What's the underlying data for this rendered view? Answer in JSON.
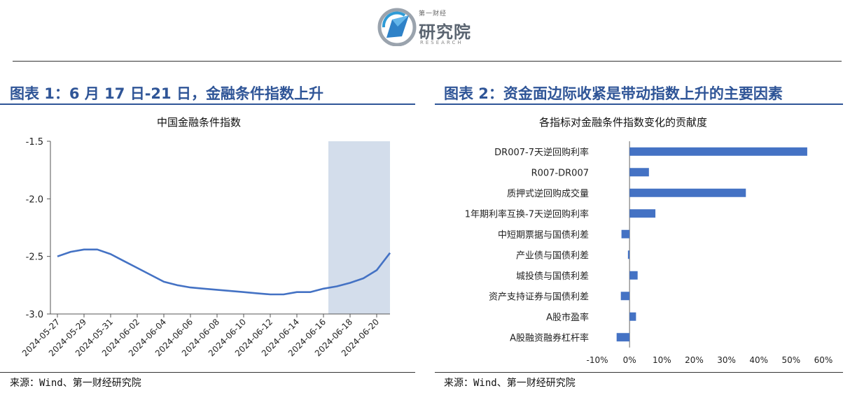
{
  "header": {
    "logo_cn_small": "第一财经",
    "logo_cn_big": "研究院",
    "logo_en": "RESEARCH"
  },
  "figure1": {
    "title": "图表 1：6 月 17 日-21 日，金融条件指数上升",
    "source": "来源：Wind、第一财经研究院",
    "chart_data": {
      "type": "line",
      "title": "中国金融条件指数",
      "xlabel": "",
      "ylabel": "",
      "ylim": [
        -3.0,
        -1.5
      ],
      "yticks": [
        "-1.5",
        "-2.0",
        "-2.5",
        "-3.0"
      ],
      "ytick_values": [
        -1.5,
        -2.0,
        -2.5,
        -3.0
      ],
      "x_tick_labels": [
        "2024-05-27",
        "2024-05-29",
        "2024-05-31",
        "2024-06-02",
        "2024-06-04",
        "2024-06-06",
        "2024-06-08",
        "2024-06-10",
        "2024-06-12",
        "2024-06-14",
        "2024-06-16",
        "2024-06-18",
        "2024-06-20"
      ],
      "x": [
        "2024-05-27",
        "2024-05-28",
        "2024-05-29",
        "2024-05-30",
        "2024-05-31",
        "2024-06-01",
        "2024-06-02",
        "2024-06-03",
        "2024-06-04",
        "2024-06-05",
        "2024-06-06",
        "2024-06-07",
        "2024-06-08",
        "2024-06-09",
        "2024-06-10",
        "2024-06-11",
        "2024-06-12",
        "2024-06-13",
        "2024-06-14",
        "2024-06-15",
        "2024-06-16",
        "2024-06-17",
        "2024-06-18",
        "2024-06-19",
        "2024-06-20",
        "2024-06-21"
      ],
      "values": [
        -2.5,
        -2.46,
        -2.44,
        -2.44,
        -2.48,
        -2.54,
        -2.6,
        -2.66,
        -2.72,
        -2.75,
        -2.77,
        -2.78,
        -2.79,
        -2.8,
        -2.81,
        -2.82,
        -2.83,
        -2.83,
        -2.81,
        -2.81,
        -2.78,
        -2.76,
        -2.73,
        -2.69,
        -2.62,
        -2.47
      ],
      "highlight_range": [
        "2024-06-17",
        "2024-06-21"
      ],
      "line_color": "#4472c4",
      "highlight_color": "#d3ddeb",
      "grid": false
    }
  },
  "figure2": {
    "title": "图表 2：资金面边际收紧是带动指数上升的主要因素",
    "source": "来源：Wind、第一财经研究院",
    "chart_data": {
      "type": "bar",
      "orientation": "horizontal",
      "title": "各指标对金融条件指数变化的贡献度",
      "categories": [
        "DR007-7天逆回购利率",
        "R007-DR007",
        "质押式逆回购成交量",
        "1年期利率互换-7天逆回购利率",
        "中短期票据与国债利差",
        "产业债与国债利差",
        "城投债与国债利差",
        "资产支持证券与国债利差",
        "A股市盈率",
        "A股融资融券杠杆率"
      ],
      "values": [
        55.0,
        6.0,
        36.0,
        8.0,
        -2.5,
        -0.5,
        2.5,
        -2.7,
        2.0,
        -4.0
      ],
      "xlim": [
        -10,
        60
      ],
      "xticks": [
        "-10%",
        "0%",
        "10%",
        "20%",
        "30%",
        "40%",
        "50%",
        "60%"
      ],
      "xtick_values": [
        -10,
        0,
        10,
        20,
        30,
        40,
        50,
        60
      ],
      "unit": "%",
      "bar_color": "#4472c4",
      "grid": false
    }
  }
}
